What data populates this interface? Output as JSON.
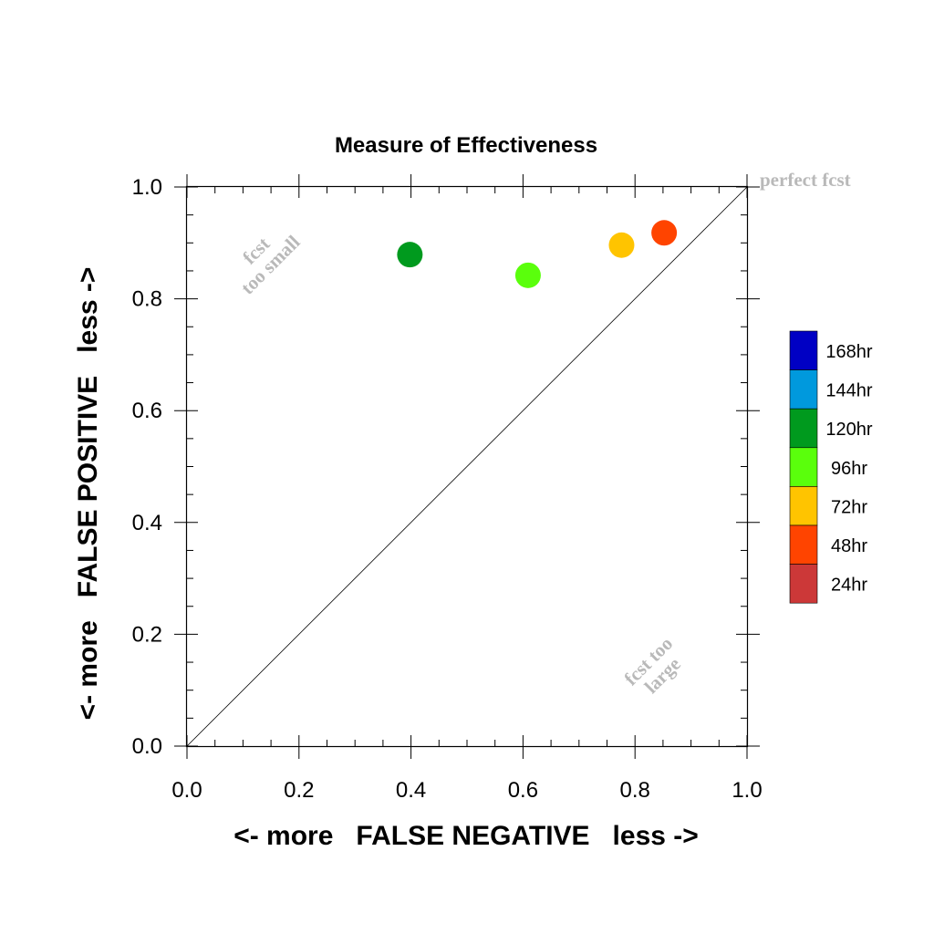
{
  "chart_data": {
    "type": "scatter",
    "title": "Measure of Effectiveness",
    "xlabel": "<- more   FALSE NEGATIVE   less ->",
    "ylabel": "<- more   FALSE POSITIVE   less ->",
    "xlim": [
      0.0,
      1.0
    ],
    "ylim": [
      0.0,
      1.0
    ],
    "x_ticks": [
      "0.0",
      "0.2",
      "0.4",
      "0.6",
      "0.8",
      "1.0"
    ],
    "y_ticks": [
      "0.0",
      "0.2",
      "0.4",
      "0.6",
      "0.8",
      "1.0"
    ],
    "grid": false,
    "diagonal_line": true,
    "annotations": {
      "perfect": "perfect fcst",
      "small_line1": "fcst",
      "small_line2": "too small",
      "large_line1": "fcst too",
      "large_line2": "large"
    },
    "legend": {
      "placement": "right",
      "items": [
        {
          "label": "168hr",
          "color": "#0000c4"
        },
        {
          "label": "144hr",
          "color": "#0099dd"
        },
        {
          "label": "120hr",
          "color": "#009a1e"
        },
        {
          "label": "96hr",
          "color": "#5aff0c"
        },
        {
          "label": "72hr",
          "color": "#ffc400"
        },
        {
          "label": "48hr",
          "color": "#ff4400"
        },
        {
          "label": "24hr",
          "color": "#cc3838"
        }
      ]
    },
    "series": [
      {
        "name": "48hr",
        "color": "#ff4400",
        "x": 0.852,
        "y": 0.918
      },
      {
        "name": "72hr",
        "color": "#ffc400",
        "x": 0.776,
        "y": 0.896
      },
      {
        "name": "96hr",
        "color": "#5aff0c",
        "x": 0.609,
        "y": 0.842
      },
      {
        "name": "120hr",
        "color": "#009a1e",
        "x": 0.398,
        "y": 0.879
      }
    ]
  }
}
